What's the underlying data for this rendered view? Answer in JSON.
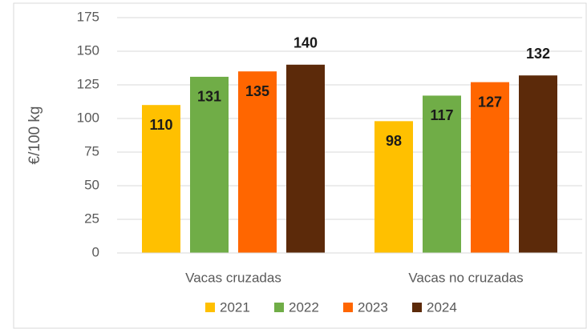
{
  "chart_data": {
    "type": "bar",
    "y_label": "€/100 kg",
    "categories": [
      "Vacas cruzadas",
      "Vacas no cruzadas"
    ],
    "series": [
      {
        "name": "2021",
        "color": "#FFC000",
        "values": [
          110,
          98
        ]
      },
      {
        "name": "2022",
        "color": "#70AD47",
        "values": [
          131,
          117
        ]
      },
      {
        "name": "2023",
        "color": "#FF6600",
        "values": [
          135,
          127
        ]
      },
      {
        "name": "2024",
        "color": "#5C2A0A",
        "values": [
          140,
          132
        ]
      }
    ],
    "ylim": [
      0,
      175
    ],
    "yticks": [
      0,
      25,
      50,
      75,
      100,
      125,
      150,
      175
    ],
    "grid": true,
    "legend": "bottom"
  }
}
